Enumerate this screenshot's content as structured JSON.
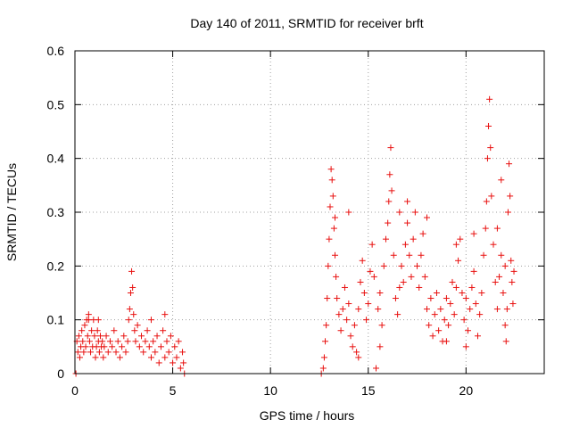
{
  "chart_data": {
    "type": "scatter",
    "title": "Day 140 of 2011, SRMTID for receiver brft",
    "xlabel": "GPS time / hours",
    "ylabel": "SRMTID / TECUs",
    "xlim": [
      0,
      24
    ],
    "ylim": [
      0,
      0.6
    ],
    "xticks": [
      0,
      5,
      10,
      15,
      20
    ],
    "xtick_labels": [
      "0",
      "5",
      "10",
      "15",
      "20"
    ],
    "yticks": [
      0,
      0.1,
      0.2,
      0.3,
      0.4,
      0.5,
      0.6
    ],
    "ytick_labels": [
      "0",
      "0.1",
      "0.2",
      "0.3",
      "0.4",
      "0.5",
      "0.6"
    ],
    "grid": true,
    "marker": "+",
    "series": [
      {
        "name": "SRMTID",
        "color": "#e8100f",
        "points": [
          [
            0.05,
            0.0
          ],
          [
            0.1,
            0.06
          ],
          [
            0.15,
            0.04
          ],
          [
            0.2,
            0.07
          ],
          [
            0.25,
            0.03
          ],
          [
            0.3,
            0.05
          ],
          [
            0.35,
            0.08
          ],
          [
            0.4,
            0.06
          ],
          [
            0.45,
            0.04
          ],
          [
            0.5,
            0.09
          ],
          [
            0.55,
            0.05
          ],
          [
            0.6,
            0.1
          ],
          [
            0.65,
            0.07
          ],
          [
            0.7,
            0.11
          ],
          [
            0.75,
            0.06
          ],
          [
            0.8,
            0.04
          ],
          [
            0.85,
            0.08
          ],
          [
            0.9,
            0.05
          ],
          [
            0.95,
            0.1
          ],
          [
            1.0,
            0.07
          ],
          [
            1.05,
            0.03
          ],
          [
            1.1,
            0.05
          ],
          [
            1.15,
            0.08
          ],
          [
            1.2,
            0.06
          ],
          [
            1.25,
            0.04
          ],
          [
            1.3,
            0.07
          ],
          [
            1.35,
            0.05
          ],
          [
            1.4,
            0.06
          ],
          [
            1.45,
            0.03
          ],
          [
            1.5,
            0.05
          ],
          [
            1.6,
            0.07
          ],
          [
            1.7,
            0.04
          ],
          [
            1.8,
            0.06
          ],
          [
            1.9,
            0.05
          ],
          [
            2.0,
            0.08
          ],
          [
            2.1,
            0.04
          ],
          [
            2.2,
            0.06
          ],
          [
            2.3,
            0.03
          ],
          [
            2.4,
            0.05
          ],
          [
            2.5,
            0.07
          ],
          [
            2.6,
            0.04
          ],
          [
            2.7,
            0.06
          ],
          [
            2.75,
            0.1
          ],
          [
            2.8,
            0.12
          ],
          [
            2.85,
            0.15
          ],
          [
            2.9,
            0.19
          ],
          [
            2.95,
            0.16
          ],
          [
            3.0,
            0.11
          ],
          [
            3.05,
            0.08
          ],
          [
            3.1,
            0.06
          ],
          [
            3.2,
            0.09
          ],
          [
            3.3,
            0.05
          ],
          [
            3.4,
            0.07
          ],
          [
            3.5,
            0.04
          ],
          [
            3.6,
            0.06
          ],
          [
            3.7,
            0.08
          ],
          [
            3.8,
            0.05
          ],
          [
            3.9,
            0.03
          ],
          [
            4.0,
            0.06
          ],
          [
            4.1,
            0.04
          ],
          [
            4.2,
            0.07
          ],
          [
            4.3,
            0.02
          ],
          [
            4.4,
            0.05
          ],
          [
            4.5,
            0.08
          ],
          [
            4.6,
            0.03
          ],
          [
            4.7,
            0.06
          ],
          [
            4.8,
            0.04
          ],
          [
            4.9,
            0.07
          ],
          [
            5.0,
            0.02
          ],
          [
            5.1,
            0.05
          ],
          [
            5.2,
            0.03
          ],
          [
            5.3,
            0.06
          ],
          [
            5.4,
            0.01
          ],
          [
            5.5,
            0.04
          ],
          [
            5.55,
            0.02
          ],
          [
            5.6,
            0.0
          ],
          [
            4.6,
            0.11
          ],
          [
            3.9,
            0.1
          ],
          [
            1.2,
            0.1
          ],
          [
            0.7,
            0.1
          ],
          [
            12.6,
            0.0
          ],
          [
            12.7,
            0.01
          ],
          [
            12.75,
            0.03
          ],
          [
            12.8,
            0.06
          ],
          [
            12.85,
            0.09
          ],
          [
            12.9,
            0.14
          ],
          [
            12.95,
            0.2
          ],
          [
            13.0,
            0.25
          ],
          [
            13.05,
            0.31
          ],
          [
            13.1,
            0.38
          ],
          [
            13.15,
            0.36
          ],
          [
            13.2,
            0.33
          ],
          [
            13.25,
            0.27
          ],
          [
            13.3,
            0.22
          ],
          [
            13.35,
            0.18
          ],
          [
            13.4,
            0.14
          ],
          [
            13.5,
            0.11
          ],
          [
            13.6,
            0.08
          ],
          [
            13.7,
            0.12
          ],
          [
            13.8,
            0.16
          ],
          [
            13.9,
            0.1
          ],
          [
            14.0,
            0.13
          ],
          [
            14.1,
            0.07
          ],
          [
            14.2,
            0.05
          ],
          [
            14.3,
            0.09
          ],
          [
            14.4,
            0.04
          ],
          [
            14.5,
            0.12
          ],
          [
            14.6,
            0.17
          ],
          [
            14.7,
            0.21
          ],
          [
            14.8,
            0.15
          ],
          [
            14.9,
            0.1
          ],
          [
            15.0,
            0.13
          ],
          [
            15.1,
            0.19
          ],
          [
            15.2,
            0.24
          ],
          [
            15.3,
            0.18
          ],
          [
            15.4,
            0.01
          ],
          [
            15.5,
            0.12
          ],
          [
            15.6,
            0.15
          ],
          [
            15.7,
            0.09
          ],
          [
            15.8,
            0.2
          ],
          [
            15.9,
            0.25
          ],
          [
            16.0,
            0.28
          ],
          [
            16.05,
            0.32
          ],
          [
            16.1,
            0.37
          ],
          [
            16.15,
            0.42
          ],
          [
            16.2,
            0.34
          ],
          [
            16.3,
            0.22
          ],
          [
            16.4,
            0.14
          ],
          [
            16.5,
            0.11
          ],
          [
            16.6,
            0.16
          ],
          [
            16.7,
            0.2
          ],
          [
            16.8,
            0.17
          ],
          [
            16.9,
            0.24
          ],
          [
            17.0,
            0.28
          ],
          [
            17.1,
            0.22
          ],
          [
            17.2,
            0.18
          ],
          [
            17.3,
            0.25
          ],
          [
            17.4,
            0.3
          ],
          [
            17.5,
            0.2
          ],
          [
            17.6,
            0.16
          ],
          [
            17.7,
            0.22
          ],
          [
            17.8,
            0.26
          ],
          [
            17.9,
            0.18
          ],
          [
            18.0,
            0.12
          ],
          [
            18.1,
            0.09
          ],
          [
            18.2,
            0.14
          ],
          [
            18.3,
            0.07
          ],
          [
            18.4,
            0.11
          ],
          [
            18.5,
            0.15
          ],
          [
            18.6,
            0.08
          ],
          [
            18.7,
            0.12
          ],
          [
            18.8,
            0.06
          ],
          [
            18.9,
            0.1
          ],
          [
            19.0,
            0.14
          ],
          [
            19.1,
            0.09
          ],
          [
            19.2,
            0.13
          ],
          [
            19.3,
            0.17
          ],
          [
            19.4,
            0.11
          ],
          [
            19.5,
            0.16
          ],
          [
            19.6,
            0.21
          ],
          [
            19.7,
            0.25
          ],
          [
            19.8,
            0.15
          ],
          [
            19.9,
            0.1
          ],
          [
            20.0,
            0.14
          ],
          [
            20.1,
            0.08
          ],
          [
            20.2,
            0.12
          ],
          [
            20.3,
            0.16
          ],
          [
            20.4,
            0.19
          ],
          [
            20.5,
            0.13
          ],
          [
            20.6,
            0.07
          ],
          [
            20.7,
            0.11
          ],
          [
            20.8,
            0.15
          ],
          [
            20.9,
            0.22
          ],
          [
            21.0,
            0.27
          ],
          [
            21.05,
            0.32
          ],
          [
            21.1,
            0.4
          ],
          [
            21.15,
            0.46
          ],
          [
            21.2,
            0.51
          ],
          [
            21.25,
            0.42
          ],
          [
            21.3,
            0.33
          ],
          [
            21.4,
            0.24
          ],
          [
            21.5,
            0.17
          ],
          [
            21.6,
            0.12
          ],
          [
            21.7,
            0.18
          ],
          [
            21.8,
            0.22
          ],
          [
            21.9,
            0.15
          ],
          [
            22.0,
            0.09
          ],
          [
            22.05,
            0.06
          ],
          [
            22.1,
            0.12
          ],
          [
            22.15,
            0.3
          ],
          [
            22.2,
            0.39
          ],
          [
            22.25,
            0.33
          ],
          [
            22.3,
            0.21
          ],
          [
            22.35,
            0.17
          ],
          [
            22.4,
            0.13
          ],
          [
            22.45,
            0.19
          ],
          [
            21.6,
            0.27
          ],
          [
            20.4,
            0.26
          ],
          [
            19.5,
            0.24
          ],
          [
            18.0,
            0.29
          ],
          [
            17.0,
            0.32
          ],
          [
            16.6,
            0.3
          ],
          [
            15.6,
            0.05
          ],
          [
            14.5,
            0.03
          ],
          [
            14.0,
            0.3
          ],
          [
            13.3,
            0.29
          ],
          [
            21.8,
            0.36
          ],
          [
            22.0,
            0.2
          ],
          [
            20.0,
            0.05
          ],
          [
            19.0,
            0.06
          ]
        ]
      }
    ]
  }
}
